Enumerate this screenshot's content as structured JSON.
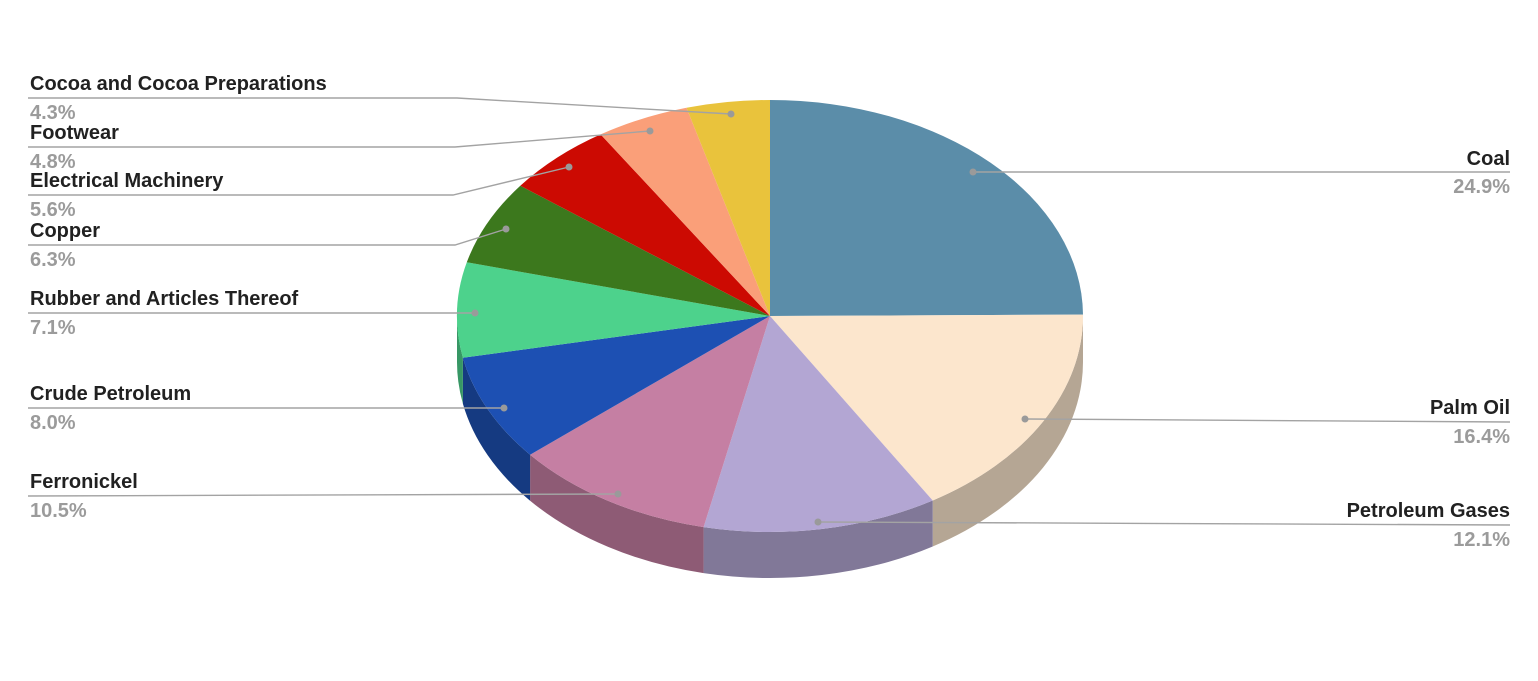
{
  "chart_data": {
    "type": "pie",
    "style": "3d-pie",
    "title": "",
    "legend_position": "none",
    "labels_mode": "outside-with-leader-lines",
    "start_angle_deg": 0,
    "direction": "clockwise",
    "unit": "%",
    "slices": [
      {
        "label": "Coal",
        "value": 24.9,
        "pct": "24.9%",
        "color": "#5b8da9"
      },
      {
        "label": "Palm Oil",
        "value": 16.4,
        "pct": "16.4%",
        "color": "#fce6cd"
      },
      {
        "label": "Petroleum Gases",
        "value": 12.1,
        "pct": "12.1%",
        "color": "#b3a6d3"
      },
      {
        "label": "Ferronickel",
        "value": 10.5,
        "pct": "10.5%",
        "color": "#c57fa3"
      },
      {
        "label": "Crude Petroleum",
        "value": 8.0,
        "pct": "8.0%",
        "color": "#1d50b3"
      },
      {
        "label": "Rubber and Articles Thereof",
        "value": 7.1,
        "pct": "7.1%",
        "color": "#4dd28c"
      },
      {
        "label": "Copper",
        "value": 6.3,
        "pct": "6.3%",
        "color": "#3c781d"
      },
      {
        "label": "Electrical Machinery",
        "value": 5.6,
        "pct": "5.6%",
        "color": "#cc0a02"
      },
      {
        "label": "Footwear",
        "value": 4.8,
        "pct": "4.8%",
        "color": "#fa9f79"
      },
      {
        "label": "Cocoa and Cocoa Preparations",
        "value": 4.3,
        "pct": "4.3%",
        "color": "#e9c33c"
      }
    ],
    "colors": {
      "label_text": "#212121",
      "pct_text": "#9b9b9b",
      "leader_line": "#a3a3a3",
      "leader_dot": "#9a9a9a",
      "background": "#ffffff"
    }
  }
}
